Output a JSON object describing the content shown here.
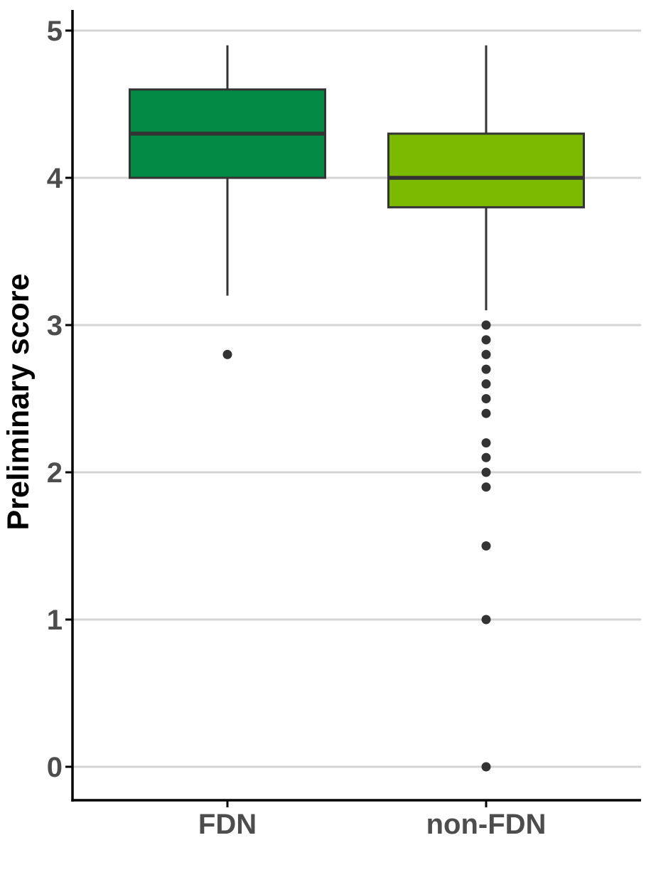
{
  "figure": {
    "background": "#FFFFFF"
  },
  "chart_data": {
    "type": "boxplot",
    "title": "",
    "xlabel": "",
    "ylabel": "Preliminary score",
    "categories": [
      "FDN",
      "non-FDN"
    ],
    "y_ticks": [
      5,
      4,
      3,
      2,
      1,
      0
    ],
    "ylim": [
      -0.25,
      5.15
    ],
    "grid": "horizontal-only",
    "legend_position": "none",
    "series": [
      {
        "name": "FDN",
        "fill": "#038B45",
        "whisker_low": 3.2,
        "q1": 4.0,
        "median": 4.3,
        "q3": 4.6,
        "whisker_high": 4.9,
        "outliers": [
          2.8
        ]
      },
      {
        "name": "non-FDN",
        "fill": "#7CBA00",
        "whisker_low": 3.1,
        "q1": 3.8,
        "median": 4.0,
        "q3": 4.3,
        "whisker_high": 4.9,
        "outliers": [
          3.0,
          2.9,
          2.8,
          2.7,
          2.6,
          2.5,
          2.4,
          2.2,
          2.1,
          2.0,
          1.9,
          1.5,
          1.0,
          0.0
        ]
      }
    ],
    "style": {
      "grid_color": "#D4D4D4",
      "axis_color": "#000000",
      "box_stroke": "#333333",
      "whisker_color": "#333333",
      "point_color": "#333333",
      "tick_label_color": "#4D4D4D",
      "category_label_color": "#4D4D4D",
      "axis_title_color": "#000000"
    }
  }
}
